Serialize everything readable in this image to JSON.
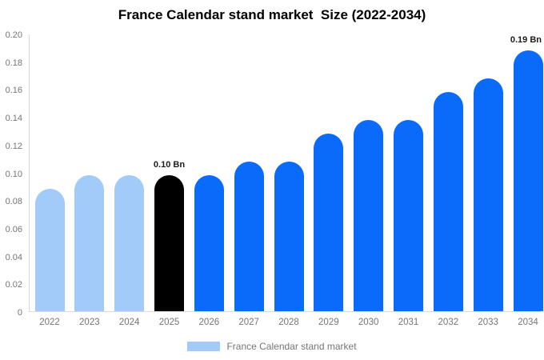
{
  "header": {
    "title": "France Calendar stand market  Size (2022-2034)"
  },
  "legend": {
    "label": "France Calendar stand market",
    "swatch_color": "#a2cbfa"
  },
  "colors": {
    "past_bar": "#a2cbfa",
    "highlight_bar": "#000000",
    "forecast_bar": "#0a6bfa",
    "axis_line": "#d9d9d9",
    "tick_text": "#757575",
    "annotation_text": "#1b1b1b",
    "title_text": "#000000"
  },
  "chart_data": {
    "type": "bar",
    "title": "France Calendar stand market  Size (2022-2034)",
    "categories": [
      "2022",
      "2023",
      "2024",
      "2025",
      "2026",
      "2027",
      "2028",
      "2029",
      "2030",
      "2031",
      "2032",
      "2033",
      "2034"
    ],
    "values": [
      0.088,
      0.098,
      0.098,
      0.098,
      0.098,
      0.108,
      0.108,
      0.128,
      0.138,
      0.138,
      0.158,
      0.168,
      0.188
    ],
    "unit": "Bn",
    "bar_colors": [
      "#a2cbfa",
      "#a2cbfa",
      "#a2cbfa",
      "#000000",
      "#0a6bfa",
      "#0a6bfa",
      "#0a6bfa",
      "#0a6bfa",
      "#0a6bfa",
      "#0a6bfa",
      "#0a6bfa",
      "#0a6bfa",
      "#0a6bfa"
    ],
    "annotations": [
      {
        "category": "2025",
        "text": "0.10 Bn"
      },
      {
        "category": "2034",
        "text": "0.19 Bn"
      }
    ],
    "xlabel": "",
    "ylabel": "",
    "ylim": [
      0,
      0.2
    ],
    "yticks": [
      0.2,
      0.18,
      0.16,
      0.14,
      0.12,
      0.1,
      0.08,
      0.06,
      0.04,
      0.02,
      0
    ],
    "ytick_labels": [
      "0.20",
      "0.18",
      "0.16",
      "0.14",
      "0.12",
      "0.10",
      "0.08",
      "0.06",
      "0.04",
      "0.02",
      "0"
    ],
    "grid": false,
    "legend_position": "bottom"
  }
}
